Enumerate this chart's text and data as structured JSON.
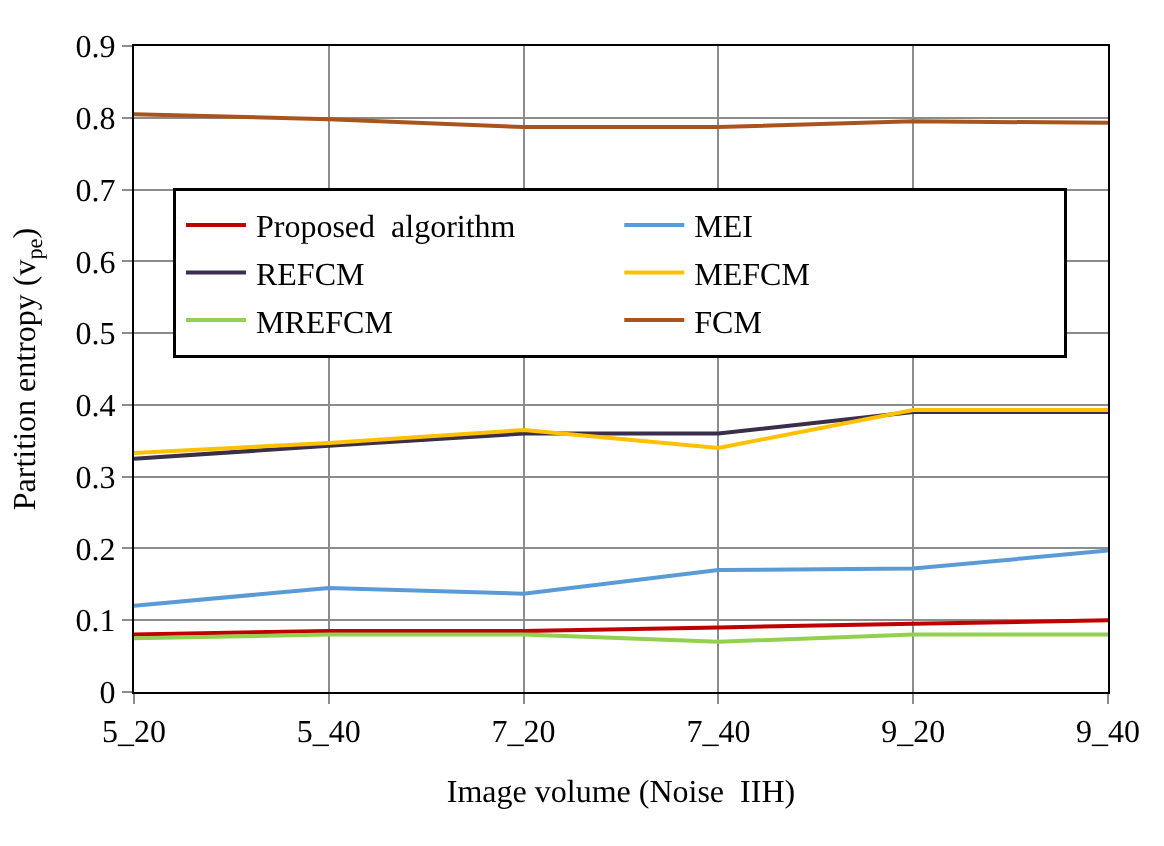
{
  "chart_data": {
    "type": "line",
    "xlabel": "Image volume (Noise  IIH)",
    "ylabel": "Partition entropy (v$_{pe}$)",
    "categories": [
      "5_20",
      "5_40",
      "7_20",
      "7_40",
      "9_20",
      "9_40"
    ],
    "series": [
      {
        "name": "Proposed  algorithm",
        "color": "#c00000",
        "values": [
          0.08,
          0.085,
          0.085,
          0.09,
          0.095,
          0.1
        ]
      },
      {
        "name": "MEI",
        "color": "#5b9bd5",
        "values": [
          0.12,
          0.145,
          0.137,
          0.17,
          0.172,
          0.197
        ]
      },
      {
        "name": "REFCM",
        "color": "#3a2e4a",
        "values": [
          0.325,
          0.343,
          0.36,
          0.36,
          0.39,
          0.39
        ]
      },
      {
        "name": "MEFCM",
        "color": "#ffc000",
        "values": [
          0.333,
          0.347,
          0.365,
          0.34,
          0.393,
          0.393
        ]
      },
      {
        "name": "MREFCM",
        "color": "#92d050",
        "values": [
          0.075,
          0.08,
          0.08,
          0.07,
          0.08,
          0.08
        ]
      },
      {
        "name": "FCM",
        "color": "#a8541c",
        "values": [
          0.805,
          0.798,
          0.787,
          0.787,
          0.795,
          0.793
        ]
      }
    ],
    "ylim": [
      0,
      0.9
    ],
    "yticks": [
      0,
      0.1,
      0.2,
      0.3,
      0.4,
      0.5,
      0.6,
      0.7,
      0.8,
      0.9
    ],
    "grid": true,
    "legend": "top",
    "marker": "none",
    "line_style": "solid"
  }
}
